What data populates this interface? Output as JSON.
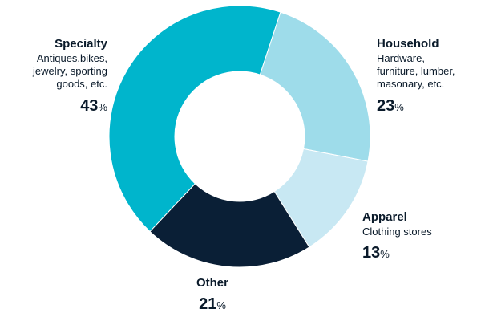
{
  "chart_data": {
    "type": "pie",
    "donut": true,
    "categories": [
      "Specialty",
      "Household",
      "Apparel",
      "Other"
    ],
    "descriptions": [
      "Antiques,bikes, jewelry, sporting goods, etc.",
      "Hardware, furniture, lumber, masonary, etc.",
      "Clothing stores",
      ""
    ],
    "values": [
      43,
      23,
      13,
      21
    ],
    "unit": "%",
    "colors": [
      "#00b5cc",
      "#9edcea",
      "#c8e8f3",
      "#0a1f36"
    ]
  },
  "labels": {
    "specialty": {
      "name": "Specialty",
      "desc_lines": [
        "Antiques,bikes,",
        "jewelry, sporting",
        "goods, etc."
      ],
      "value": "43",
      "unit": "%"
    },
    "household": {
      "name": "Household",
      "desc_lines": [
        "Hardware,",
        "furniture, lumber,",
        "masonary, etc."
      ],
      "value": "23",
      "unit": "%"
    },
    "apparel": {
      "name": "Apparel",
      "desc_lines": [
        "Clothing stores"
      ],
      "value": "13",
      "unit": "%"
    },
    "other": {
      "name": "Other",
      "value": "21",
      "unit": "%"
    }
  }
}
